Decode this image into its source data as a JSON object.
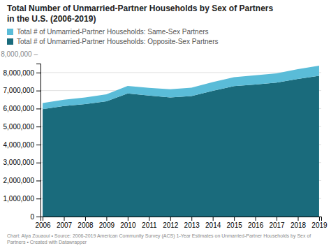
{
  "chart_data": {
    "type": "area",
    "stacked": true,
    "title": "Total Number of Unmarried-Partner Households by Sex of Partners\nin the U.S. (2006-2019)",
    "caption": "Chart: Alya Zouaoui • Source: 2006-2019 American Community Survey (ACS) 1-Year Estimates on Unmarried-Partner Households by Sex of\nPartners • Created with Datawrapper",
    "annotation": "8,000,000 –",
    "x": [
      2006,
      2007,
      2008,
      2009,
      2010,
      2011,
      2012,
      2013,
      2014,
      2015,
      2016,
      2017,
      2018,
      2019
    ],
    "series": [
      {
        "name": "Total # of Unmarried-Partner Households: Opposite-Sex Partners",
        "color": "#1a6b7c",
        "values": [
          5970000,
          6140000,
          6250000,
          6400000,
          6840000,
          6720000,
          6620000,
          6700000,
          6990000,
          7250000,
          7340000,
          7440000,
          7650000,
          7820000
        ]
      },
      {
        "name": "Total # of Unmarried-Partner Households: Same-Sex Partners",
        "color": "#5abcd8",
        "values": [
          340000,
          355000,
          370000,
          390000,
          415000,
          430000,
          450000,
          460000,
          480000,
          490000,
          510000,
          520000,
          540000,
          560000
        ]
      }
    ],
    "xlim": [
      2005.9,
      2019.1
    ],
    "xticks": [
      2006,
      2007,
      2008,
      2009,
      2010,
      2011,
      2012,
      2013,
      2014,
      2015,
      2016,
      2017,
      2018,
      2019
    ],
    "ylim": [
      0,
      8500000
    ],
    "yticks": [
      0,
      {
        "value": 1000000,
        "label": "1,000,000"
      },
      {
        "value": 2000000,
        "label": "2,000,000"
      },
      {
        "value": 3000000,
        "label": "3,000,000"
      },
      {
        "value": 4000000,
        "label": "4,000,000"
      },
      {
        "value": 5000000,
        "label": "5,000,000"
      },
      {
        "value": 6000000,
        "label": "6,000,000"
      },
      {
        "value": 7000000,
        "label": "7,000,000"
      },
      {
        "value": 8000000,
        "label": "8,000,000"
      }
    ],
    "grid": true,
    "legend": "upper left"
  }
}
